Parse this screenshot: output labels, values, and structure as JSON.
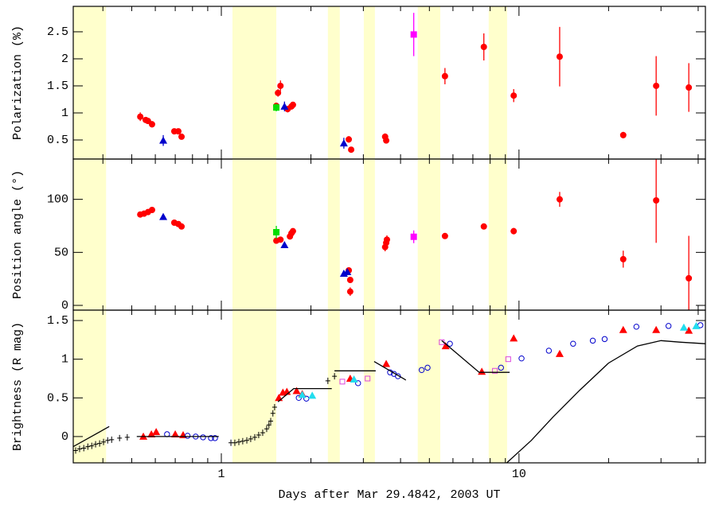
{
  "chart_data": [
    {
      "type": "scatter",
      "ylabel": "Polarization (%)",
      "xscale": "log",
      "xlim": [
        0.318,
        42.3
      ],
      "ylim": [
        0.147,
        2.97
      ],
      "yticks": [
        0.5,
        1,
        1.5,
        2,
        2.5
      ],
      "shade_color": "#ffffcc",
      "shaded": [
        [
          0.318,
          0.41
        ],
        [
          1.09,
          1.53
        ],
        [
          2.28,
          2.5
        ],
        [
          3.01,
          3.28
        ],
        [
          4.57,
          5.44
        ],
        [
          7.91,
          9.12
        ]
      ],
      "series": [
        {
          "marker": "circle",
          "color": "#ff0000",
          "x": [
            0.534,
            0.557,
            0.567,
            0.585,
            0.695,
            0.717,
            0.735,
            1.53,
            1.55,
            1.58,
            1.67,
            1.72,
            1.74,
            2.68,
            2.73,
            3.55,
            3.58,
            5.64,
            7.62,
            9.6,
            13.7,
            22.4,
            28.9,
            37.2
          ],
          "values": [
            0.93,
            0.87,
            0.85,
            0.79,
            0.66,
            0.66,
            0.56,
            1.13,
            1.37,
            1.5,
            1.07,
            1.12,
            1.15,
            0.51,
            0.32,
            0.56,
            0.49,
            1.68,
            2.22,
            1.32,
            2.04,
            0.59,
            1.5,
            1.47
          ],
          "errors": [
            0.08,
            0.05,
            0.05,
            0.06,
            0.04,
            0.04,
            0.04,
            0.06,
            0.07,
            0.1,
            0.06,
            0.06,
            0.05,
            0.06,
            0.05,
            0.06,
            0.05,
            0.15,
            0.25,
            0.12,
            0.55,
            0.06,
            0.55,
            0.45
          ]
        },
        {
          "marker": "triangle",
          "color": "#0000cc",
          "x": [
            0.638,
            1.63,
            2.58
          ],
          "values": [
            0.49,
            1.12,
            0.44
          ],
          "errors": [
            0.1,
            0.09,
            0.1
          ]
        },
        {
          "marker": "square",
          "color": "#00dd00",
          "x": [
            1.53
          ],
          "values": [
            1.1
          ],
          "errors": [
            0.07
          ]
        },
        {
          "marker": "square",
          "color": "#ff00ff",
          "x": [
            4.43
          ],
          "values": [
            2.45
          ],
          "errors": [
            0.4
          ]
        }
      ]
    },
    {
      "type": "scatter",
      "ylabel": "Position angle (°)",
      "xscale": "log",
      "xlim": [
        0.318,
        42.3
      ],
      "ylim": [
        -4.5,
        138
      ],
      "yticks": [
        0,
        50,
        100
      ],
      "shade_color": "#ffffcc",
      "shaded": [
        [
          0.318,
          0.41
        ],
        [
          1.09,
          1.53
        ],
        [
          2.28,
          2.5
        ],
        [
          3.01,
          3.28
        ],
        [
          4.57,
          5.44
        ],
        [
          7.91,
          9.12
        ]
      ],
      "series": [
        {
          "marker": "circle",
          "color": "#ff0000",
          "x": [
            0.534,
            0.55,
            0.567,
            0.585,
            0.695,
            0.717,
            0.735,
            1.53,
            1.58,
            1.7,
            1.72,
            1.74,
            2.68,
            2.71,
            2.71,
            3.55,
            3.58,
            3.6,
            5.64,
            7.62,
            9.6,
            13.7,
            22.4,
            28.9,
            37.2
          ],
          "values": [
            85.7,
            86.5,
            88,
            90,
            78,
            76.7,
            74.4,
            61,
            62,
            65,
            68,
            70,
            33,
            24,
            13,
            55,
            59,
            62,
            65.4,
            74.4,
            70,
            100,
            43.6,
            99,
            25.6
          ],
          "errors": [
            2,
            2,
            2,
            2,
            2,
            2,
            2,
            2,
            2,
            2,
            2,
            2,
            3,
            3,
            4,
            4,
            3,
            4,
            2,
            2,
            3,
            7,
            8,
            40,
            40
          ]
        },
        {
          "marker": "triangle",
          "color": "#0000cc",
          "x": [
            0.638,
            1.63,
            2.58,
            2.65
          ],
          "values": [
            83.5,
            57,
            30,
            31.6
          ],
          "errors": [
            2,
            2,
            3,
            3
          ]
        },
        {
          "marker": "square",
          "color": "#00dd00",
          "x": [
            1.53
          ],
          "values": [
            69
          ],
          "errors": [
            6
          ]
        },
        {
          "marker": "square",
          "color": "#ff00ff",
          "x": [
            4.43
          ],
          "values": [
            64.7
          ],
          "errors": [
            6
          ]
        }
      ]
    },
    {
      "type": "scatter",
      "ylabel": "Brightness (R mag)",
      "xlabel": "Days after Mar 29.4842, 2003 UT",
      "xscale": "log",
      "xlim": [
        0.318,
        42.3
      ],
      "ylim": [
        -0.34,
        1.634
      ],
      "xticks": [
        1,
        10
      ],
      "xticks_minor": [
        0.4,
        0.5,
        0.6,
        0.7,
        0.8,
        0.9,
        2,
        3,
        4,
        5,
        6,
        7,
        8,
        9,
        20,
        30,
        40
      ],
      "yticks": [
        0,
        0.5,
        1,
        1.5
      ],
      "shade_color": "#ffffcc",
      "shaded": [
        [
          0.318,
          0.41
        ],
        [
          1.09,
          1.53
        ],
        [
          2.28,
          2.5
        ],
        [
          3.01,
          3.28
        ],
        [
          4.57,
          5.44
        ],
        [
          7.91,
          9.12
        ]
      ],
      "series": [
        {
          "marker": "cross",
          "color": "#000000",
          "x": [
            0.324,
            0.334,
            0.345,
            0.356,
            0.367,
            0.378,
            0.39,
            0.402,
            0.415,
            0.428,
            0.455,
            0.483,
            1.077,
            1.11,
            1.145,
            1.18,
            1.218,
            1.255,
            1.295,
            1.335,
            1.377,
            1.42,
            1.445,
            1.465,
            1.49,
            1.51,
            2.28,
            2.4
          ],
          "values": [
            -0.18,
            -0.16,
            -0.15,
            -0.13,
            -0.12,
            -0.1,
            -0.09,
            -0.07,
            -0.05,
            -0.04,
            -0.02,
            -0.01,
            -0.08,
            -0.08,
            -0.07,
            -0.06,
            -0.05,
            -0.03,
            -0.01,
            0.02,
            0.05,
            0.1,
            0.15,
            0.2,
            0.3,
            0.38,
            0.72,
            0.78
          ]
        },
        {
          "marker": "triangle",
          "color": "#ff0000",
          "x": [
            0.547,
            0.582,
            0.604,
            0.7,
            0.744,
            1.56,
            1.61,
            1.66,
            1.79,
            1.87,
            2.71,
            3.58,
            5.67,
            7.5,
            9.6,
            13.7,
            22.4,
            28.9,
            37.2
          ],
          "values": [
            0,
            0.03,
            0.06,
            0.03,
            0.02,
            0.5,
            0.57,
            0.58,
            0.59,
            0.55,
            0.75,
            0.94,
            1.17,
            0.84,
            1.27,
            1.07,
            1.38,
            1.38,
            1.37
          ]
        },
        {
          "marker": "open-circle",
          "color": "#0000cc",
          "x": [
            0.657,
            0.77,
            0.82,
            0.868,
            0.923,
            0.952,
            1.82,
            1.93,
            2.88,
            3.69,
            3.8,
            3.92,
            4.71,
            4.93,
            5.86,
            8.7,
            10.2,
            12.6,
            15.2,
            17.7,
            19.4,
            24.8,
            31.8,
            40.7
          ],
          "values": [
            0.03,
            0.01,
            0,
            -0.01,
            -0.02,
            -0.02,
            0.5,
            0.49,
            0.69,
            0.83,
            0.81,
            0.78,
            0.86,
            0.89,
            1.2,
            0.89,
            1.01,
            1.11,
            1.2,
            1.24,
            1.26,
            1.42,
            1.43,
            1.44
          ]
        },
        {
          "marker": "triangle",
          "color": "#22ddee",
          "x": [
            1.87,
            2.02,
            2.79,
            35.8,
            39.4
          ],
          "values": [
            0.54,
            0.53,
            0.74,
            1.41,
            1.43
          ]
        },
        {
          "marker": "open-square",
          "color": "#dd44dd",
          "x": [
            2.55,
            3.1,
            5.5,
            8.3,
            9.2
          ],
          "values": [
            0.71,
            0.75,
            1.22,
            0.85,
            1
          ]
        },
        {
          "marker": "line",
          "color": "#000000",
          "x": [
            0.318,
            0.42,
            null,
            0.52,
            0.98,
            null,
            1.55,
            1.75,
            2.35,
            null,
            2.4,
            3.3,
            null,
            3.26,
            4.17,
            null,
            5.5,
            7.35,
            9.3,
            null,
            9.1,
            11,
            13,
            16,
            20,
            25,
            30,
            35,
            42.3
          ],
          "values": [
            -0.13,
            0.13,
            null,
            0,
            0,
            null,
            0.45,
            0.62,
            0.62,
            null,
            0.85,
            0.85,
            null,
            0.97,
            0.73,
            null,
            1.24,
            0.83,
            0.83,
            null,
            -0.34,
            -0.05,
            0.25,
            0.6,
            0.95,
            1.17,
            1.24,
            1.22,
            1.2
          ]
        }
      ]
    }
  ]
}
